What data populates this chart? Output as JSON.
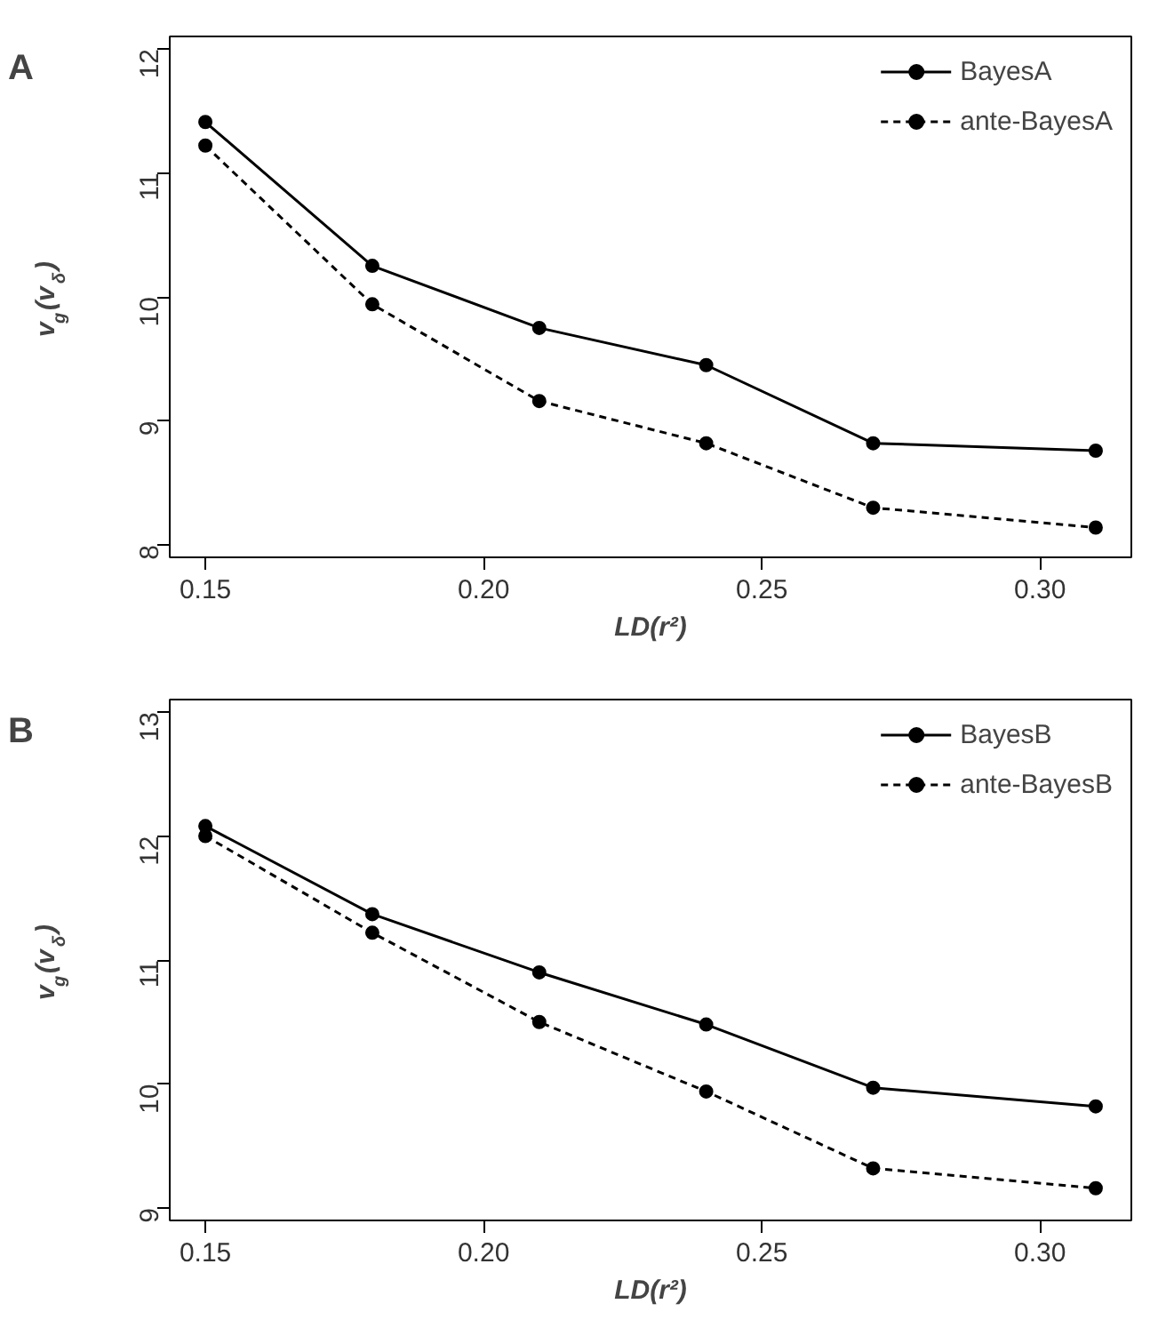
{
  "chart_data": [
    {
      "type": "line",
      "title": "A",
      "xlabel": "LD(r²)",
      "ylabel": "v$_{g}$(v$_{δ}$)",
      "x": [
        0.15,
        0.18,
        0.21,
        0.24,
        0.27,
        0.31
      ],
      "marker": "circle",
      "legend": "top right",
      "xlim": [
        0.1436,
        0.3164
      ],
      "ylim": [
        7.9,
        12.1
      ],
      "xticks": [
        {
          "value": 0.15,
          "label": "0.15"
        },
        {
          "value": 0.2,
          "label": "0.20"
        },
        {
          "value": 0.25,
          "label": "0.25"
        },
        {
          "value": 0.3,
          "label": "0.30"
        }
      ],
      "yticks": [
        8,
        9,
        10,
        11,
        12
      ],
      "series": [
        {
          "name": "BayesA",
          "color": "#000000",
          "line_style": "solid",
          "values": [
            11.41,
            10.25,
            9.75,
            9.45,
            8.82,
            8.76
          ]
        },
        {
          "name": "ante-BayesA",
          "color": "#000000",
          "line_style": "dashed",
          "values": [
            11.22,
            9.94,
            9.16,
            8.82,
            8.3,
            8.14
          ]
        }
      ]
    },
    {
      "type": "line",
      "title": "B",
      "xlabel": "LD(r²)",
      "ylabel": "v$_{g}$(v$_{δ}$)",
      "x": [
        0.15,
        0.18,
        0.21,
        0.24,
        0.27,
        0.31
      ],
      "marker": "circle",
      "legend": "top right",
      "xlim": [
        0.1436,
        0.3164
      ],
      "ylim": [
        8.9,
        13.1
      ],
      "xticks": [
        {
          "value": 0.15,
          "label": "0.15"
        },
        {
          "value": 0.2,
          "label": "0.20"
        },
        {
          "value": 0.25,
          "label": "0.25"
        },
        {
          "value": 0.3,
          "label": "0.30"
        }
      ],
      "yticks": [
        9,
        10,
        11,
        12,
        13
      ],
      "series": [
        {
          "name": "BayesB",
          "color": "#000000",
          "line_style": "solid",
          "values": [
            12.08,
            11.37,
            10.9,
            10.48,
            9.97,
            9.82
          ]
        },
        {
          "name": "ante-BayesB",
          "color": "#000000",
          "line_style": "dashed",
          "values": [
            12.0,
            11.22,
            10.5,
            9.94,
            9.32,
            9.16
          ]
        }
      ]
    }
  ]
}
